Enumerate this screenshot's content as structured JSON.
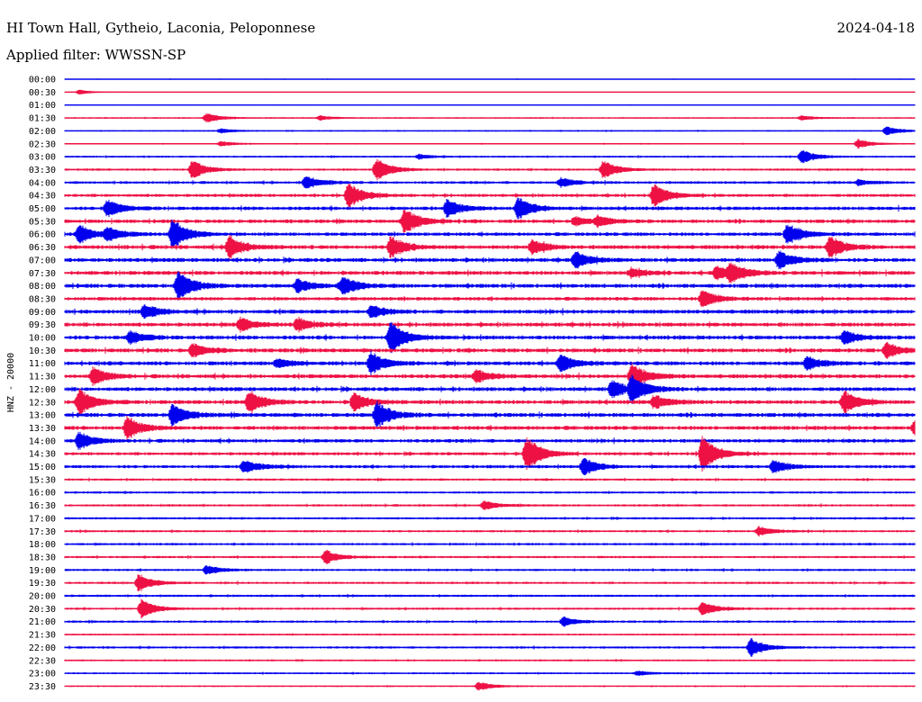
{
  "header": {
    "station": "HI Town Hall, Gytheio, Laconia, Peloponnese",
    "date": "2024-04-18",
    "filter": "Applied filter: WWSSN-SP"
  },
  "chart_data": {
    "type": "helicorder",
    "title": "HI Town Hall, Gytheio, Laconia, Peloponnese",
    "date": "2024-04-18",
    "filter": "WWSSN-SP",
    "ylabel": "HNZ - 20000",
    "xlabel": "",
    "colors": [
      "#0000ee",
      "#ee1144"
    ],
    "row_labels": [
      "00:00",
      "00:30",
      "01:00",
      "01:30",
      "02:00",
      "02:30",
      "03:00",
      "03:30",
      "04:00",
      "04:30",
      "05:00",
      "05:30",
      "06:00",
      "06:30",
      "07:00",
      "07:30",
      "08:00",
      "08:30",
      "09:00",
      "09:30",
      "10:00",
      "10:30",
      "11:00",
      "11:30",
      "12:00",
      "12:30",
      "13:00",
      "13:30",
      "14:00",
      "14:30",
      "15:00",
      "15:30",
      "16:00",
      "16:30",
      "17:00",
      "17:30",
      "18:00",
      "18:30",
      "19:00",
      "19:30",
      "20:00",
      "20:30",
      "21:00",
      "21:30",
      "22:00",
      "22:30",
      "23:00",
      "23:30"
    ],
    "noise_level": [
      0.1,
      0.05,
      0.1,
      0.2,
      0.2,
      0.2,
      0.3,
      0.4,
      0.5,
      0.6,
      0.7,
      0.7,
      0.7,
      0.8,
      0.8,
      0.8,
      0.8,
      0.7,
      0.8,
      0.8,
      0.8,
      0.8,
      0.8,
      0.8,
      0.8,
      0.8,
      0.8,
      0.8,
      0.7,
      0.6,
      0.6,
      0.4,
      0.4,
      0.4,
      0.4,
      0.4,
      0.4,
      0.4,
      0.4,
      0.4,
      0.4,
      0.4,
      0.4,
      0.3,
      0.4,
      0.3,
      0.3,
      0.2
    ],
    "events": [
      {
        "row": 1,
        "minute": 0.5,
        "amp": 1
      },
      {
        "row": 3,
        "minute": 5,
        "amp": 2
      },
      {
        "row": 3,
        "minute": 9,
        "amp": 1
      },
      {
        "row": 3,
        "minute": 26,
        "amp": 1
      },
      {
        "row": 4,
        "minute": 5.5,
        "amp": 1
      },
      {
        "row": 4,
        "minute": 29,
        "amp": 2
      },
      {
        "row": 5,
        "minute": 5.5,
        "amp": 1
      },
      {
        "row": 5,
        "minute": 28,
        "amp": 2
      },
      {
        "row": 6,
        "minute": 12.5,
        "amp": 1
      },
      {
        "row": 6,
        "minute": 26,
        "amp": 3
      },
      {
        "row": 7,
        "minute": 4.5,
        "amp": 4
      },
      {
        "row": 7,
        "minute": 11,
        "amp": 5
      },
      {
        "row": 7,
        "minute": 19,
        "amp": 4
      },
      {
        "row": 8,
        "minute": 8.5,
        "amp": 3
      },
      {
        "row": 8,
        "minute": 17.5,
        "amp": 2
      },
      {
        "row": 8,
        "minute": 28,
        "amp": 1
      },
      {
        "row": 9,
        "minute": 10,
        "amp": 6
      },
      {
        "row": 9,
        "minute": 20.8,
        "amp": 5
      },
      {
        "row": 10,
        "minute": 1.5,
        "amp": 4
      },
      {
        "row": 10,
        "minute": 13.5,
        "amp": 4
      },
      {
        "row": 10,
        "minute": 16,
        "amp": 5
      },
      {
        "row": 11,
        "minute": 12,
        "amp": 6
      },
      {
        "row": 11,
        "minute": 18,
        "amp": 2
      },
      {
        "row": 11,
        "minute": 18.8,
        "amp": 2
      },
      {
        "row": 12,
        "minute": 0.5,
        "amp": 4
      },
      {
        "row": 12,
        "minute": 1.5,
        "amp": 3
      },
      {
        "row": 12,
        "minute": 3.8,
        "amp": 7
      },
      {
        "row": 12,
        "minute": 25.5,
        "amp": 5
      },
      {
        "row": 13,
        "minute": 5.8,
        "amp": 5
      },
      {
        "row": 13,
        "minute": 11.5,
        "amp": 5
      },
      {
        "row": 13,
        "minute": 16.5,
        "amp": 3
      },
      {
        "row": 13,
        "minute": 27,
        "amp": 5
      },
      {
        "row": 14,
        "minute": 18,
        "amp": 4
      },
      {
        "row": 14,
        "minute": 25.2,
        "amp": 4
      },
      {
        "row": 15,
        "minute": 20,
        "amp": 2
      },
      {
        "row": 15,
        "minute": 23,
        "amp": 3
      },
      {
        "row": 15,
        "minute": 23.5,
        "amp": 4
      },
      {
        "row": 16,
        "minute": 4,
        "amp": 7
      },
      {
        "row": 16,
        "minute": 8.2,
        "amp": 3
      },
      {
        "row": 16,
        "minute": 9.8,
        "amp": 4
      },
      {
        "row": 17,
        "minute": 22.5,
        "amp": 4
      },
      {
        "row": 18,
        "minute": 2.8,
        "amp": 3
      },
      {
        "row": 18,
        "minute": 10.8,
        "amp": 3
      },
      {
        "row": 19,
        "minute": 6.2,
        "amp": 3
      },
      {
        "row": 19,
        "minute": 8.2,
        "amp": 3
      },
      {
        "row": 20,
        "minute": 2.3,
        "amp": 3
      },
      {
        "row": 20,
        "minute": 11.5,
        "amp": 7
      },
      {
        "row": 20,
        "minute": 27.5,
        "amp": 3
      },
      {
        "row": 21,
        "minute": 4.5,
        "amp": 3
      },
      {
        "row": 21,
        "minute": 29,
        "amp": 3
      },
      {
        "row": 22,
        "minute": 7.5,
        "amp": 2
      },
      {
        "row": 22,
        "minute": 10.8,
        "amp": 5
      },
      {
        "row": 22,
        "minute": 17.5,
        "amp": 4
      },
      {
        "row": 22,
        "minute": 26.2,
        "amp": 3
      },
      {
        "row": 23,
        "minute": 1,
        "amp": 4
      },
      {
        "row": 23,
        "minute": 14.5,
        "amp": 3
      },
      {
        "row": 23,
        "minute": 20,
        "amp": 6
      },
      {
        "row": 24,
        "minute": 19.3,
        "amp": 4
      },
      {
        "row": 24,
        "minute": 20,
        "amp": 6
      },
      {
        "row": 25,
        "minute": 0.5,
        "amp": 6
      },
      {
        "row": 25,
        "minute": 6.5,
        "amp": 5
      },
      {
        "row": 25,
        "minute": 10.2,
        "amp": 4
      },
      {
        "row": 25,
        "minute": 20.8,
        "amp": 3
      },
      {
        "row": 25,
        "minute": 27.5,
        "amp": 5
      },
      {
        "row": 26,
        "minute": 3.8,
        "amp": 5
      },
      {
        "row": 26,
        "minute": 11,
        "amp": 6
      },
      {
        "row": 27,
        "minute": 2.2,
        "amp": 5
      },
      {
        "row": 27,
        "minute": 30,
        "amp": 3
      },
      {
        "row": 28,
        "minute": 0.5,
        "amp": 4
      },
      {
        "row": 29,
        "minute": 16.3,
        "amp": 8
      },
      {
        "row": 29,
        "minute": 22.5,
        "amp": 8
      },
      {
        "row": 30,
        "minute": 6.3,
        "amp": 3
      },
      {
        "row": 30,
        "minute": 18.3,
        "amp": 4
      },
      {
        "row": 30,
        "minute": 25,
        "amp": 3
      },
      {
        "row": 33,
        "minute": 14.8,
        "amp": 2
      },
      {
        "row": 35,
        "minute": 24.5,
        "amp": 2
      },
      {
        "row": 37,
        "minute": 9.2,
        "amp": 3
      },
      {
        "row": 38,
        "minute": 5,
        "amp": 2
      },
      {
        "row": 39,
        "minute": 2.6,
        "amp": 4
      },
      {
        "row": 41,
        "minute": 2.7,
        "amp": 4
      },
      {
        "row": 41,
        "minute": 22.5,
        "amp": 3
      },
      {
        "row": 42,
        "minute": 17.6,
        "amp": 2
      },
      {
        "row": 44,
        "minute": 24.2,
        "amp": 4
      },
      {
        "row": 46,
        "minute": 20.2,
        "amp": 1
      },
      {
        "row": 47,
        "minute": 14.6,
        "amp": 2
      }
    ]
  }
}
